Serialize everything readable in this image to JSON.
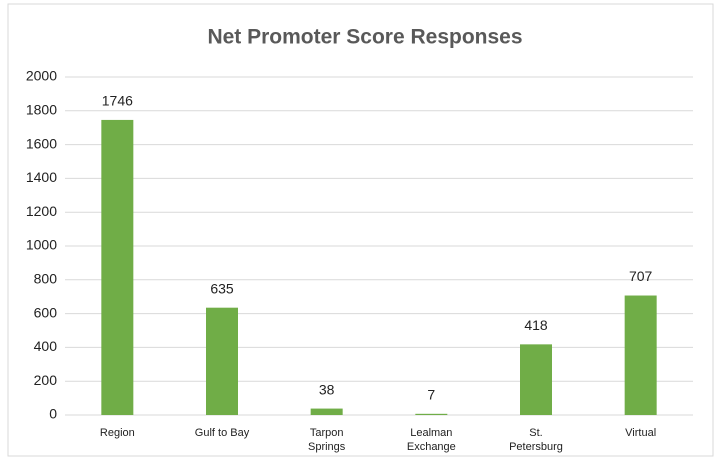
{
  "chart_data": {
    "type": "bar",
    "title": "Net Promoter Score Responses",
    "categories": [
      "Region",
      "Gulf to Bay",
      "Tarpon Springs",
      "Lealman Exchange",
      "St. Petersburg",
      "Virtual"
    ],
    "values": [
      1746,
      635,
      38,
      7,
      418,
      707
    ],
    "color": "#70ad47",
    "ylim": [
      0,
      2000
    ],
    "yticks": [
      0,
      200,
      400,
      600,
      800,
      1000,
      1200,
      1400,
      1600,
      1800,
      2000
    ],
    "grid": true
  }
}
